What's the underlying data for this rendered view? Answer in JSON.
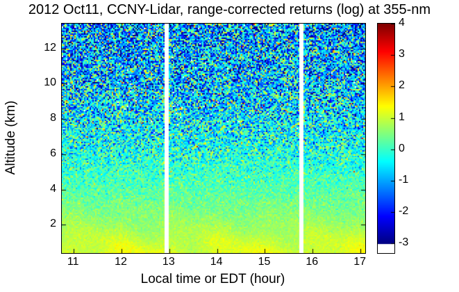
{
  "figure": {
    "background": "#ffffff",
    "text_color": "#000000"
  },
  "chart_data": {
    "type": "heatmap",
    "title": "2012 Oct11, CCNY-Lidar, range-corrected returns (log) at 355-nm",
    "xlabel": "Local time or EDT (hour)",
    "ylabel": "Altitude (km)",
    "x_range_hours": [
      10.75,
      17.1
    ],
    "y_range_km": [
      0.4,
      13.4
    ],
    "xticks": [
      11,
      12,
      13,
      14,
      15,
      16,
      17
    ],
    "yticks": [
      2,
      4,
      6,
      8,
      10,
      12
    ],
    "colormap": "jet",
    "clim": [
      -3,
      4
    ],
    "colorbar_ticks": [
      4,
      3,
      2,
      1,
      0,
      -1,
      -2,
      -3
    ],
    "colorbar_range": [
      -3.3,
      4
    ],
    "colorbar_under_color": "#ffffff",
    "gap_color": "#ffffff",
    "data_gaps_hours": [
      [
        12.9,
        12.99
      ],
      [
        15.73,
        15.82
      ]
    ],
    "grid": false,
    "legend": "colorbar-right",
    "profile_mean_log_vs_altitude": [
      {
        "altitude_km": 0.4,
        "mean_log": 1.15,
        "noise_sd": 0.1
      },
      {
        "altitude_km": 1.0,
        "mean_log": 1.0,
        "noise_sd": 0.12
      },
      {
        "altitude_km": 1.5,
        "mean_log": 0.85,
        "noise_sd": 0.12
      },
      {
        "altitude_km": 2.0,
        "mean_log": 0.7,
        "noise_sd": 0.15
      },
      {
        "altitude_km": 2.5,
        "mean_log": 0.58,
        "noise_sd": 0.18
      },
      {
        "altitude_km": 3.0,
        "mean_log": 0.45,
        "noise_sd": 0.22
      },
      {
        "altitude_km": 4.0,
        "mean_log": 0.22,
        "noise_sd": 0.3
      },
      {
        "altitude_km": 5.0,
        "mean_log": 0.02,
        "noise_sd": 0.45
      },
      {
        "altitude_km": 6.0,
        "mean_log": -0.18,
        "noise_sd": 0.65
      },
      {
        "altitude_km": 7.0,
        "mean_log": -0.35,
        "noise_sd": 0.85
      },
      {
        "altitude_km": 8.0,
        "mean_log": -0.5,
        "noise_sd": 1.0
      },
      {
        "altitude_km": 10.0,
        "mean_log": -0.75,
        "noise_sd": 1.2
      },
      {
        "altitude_km": 12.0,
        "mean_log": -0.95,
        "noise_sd": 1.3
      },
      {
        "altitude_km": 13.4,
        "mean_log": -1.05,
        "noise_sd": 1.35
      }
    ]
  }
}
